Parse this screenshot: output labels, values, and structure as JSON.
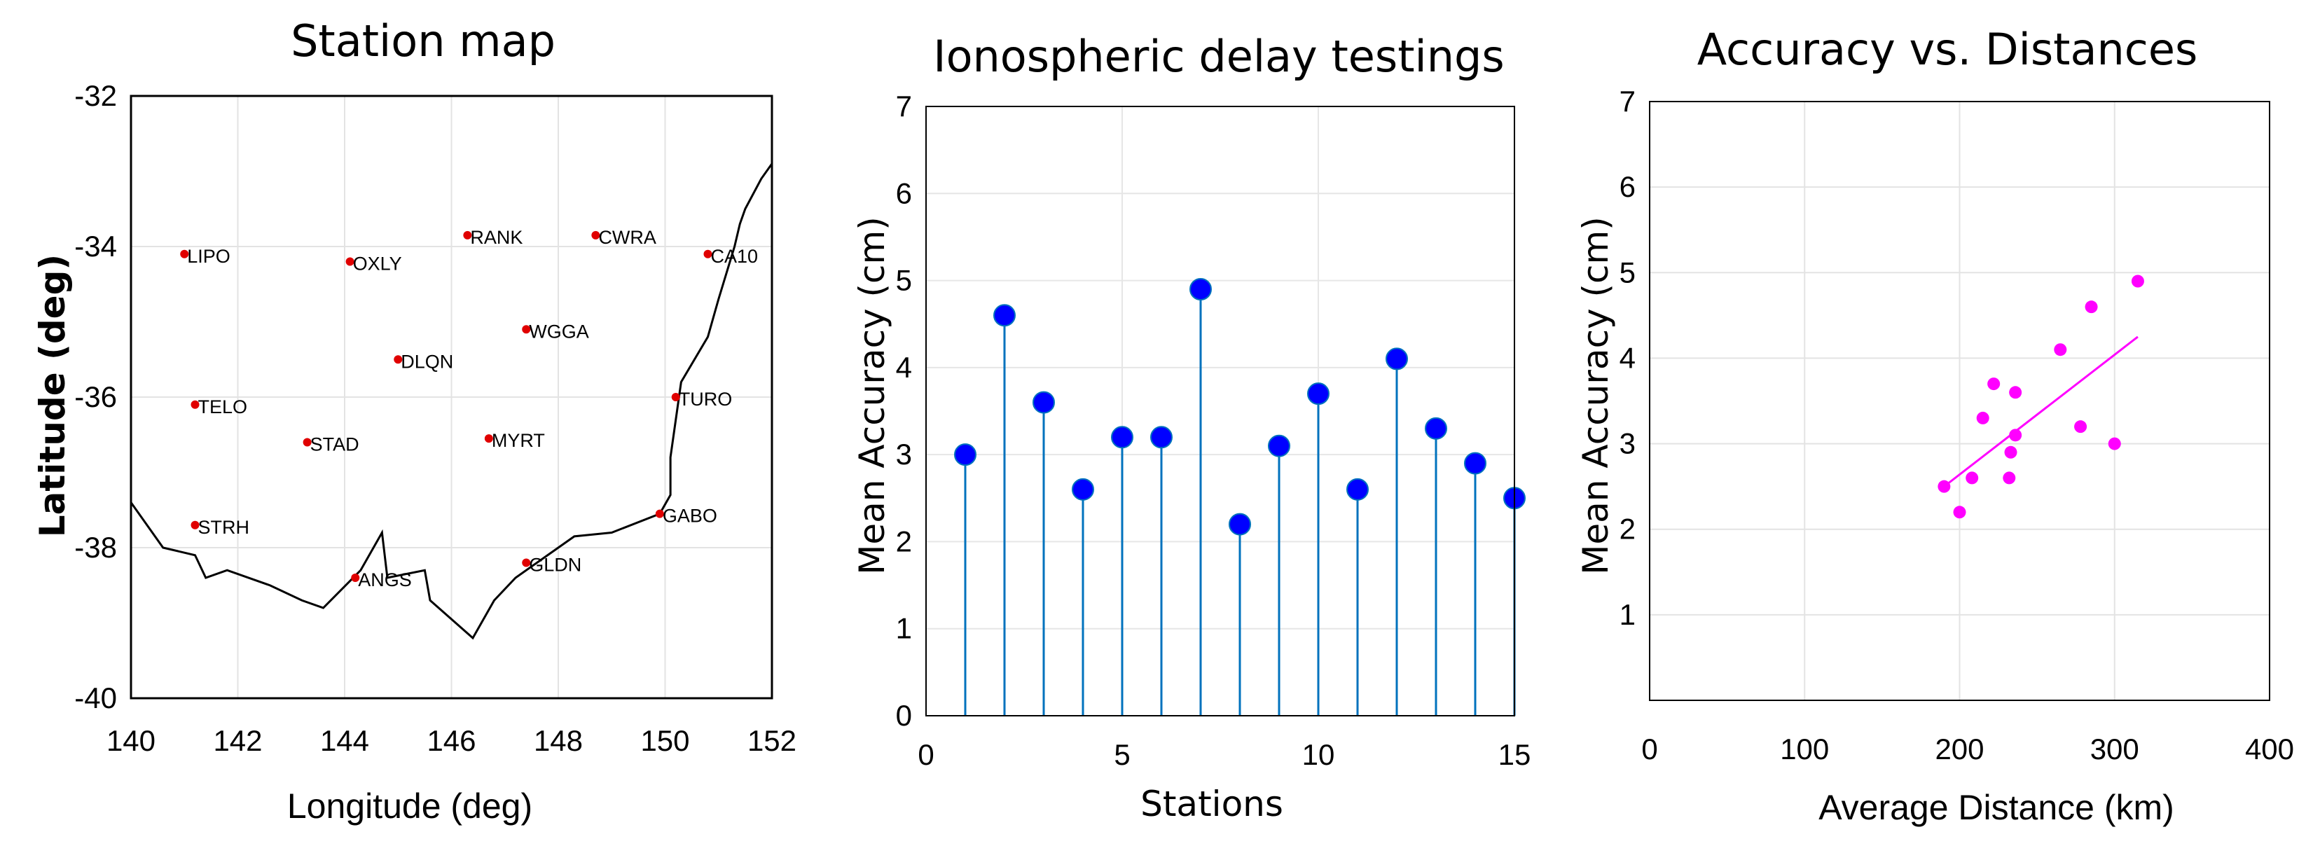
{
  "chart_data": [
    {
      "type": "scatter",
      "title": "Station map",
      "xlabel": "Longitude (deg)",
      "ylabel": "Latitude (deg)",
      "xlim": [
        140,
        152
      ],
      "ylim": [
        -40,
        -32
      ],
      "xticks": [
        "140",
        "142",
        "144",
        "146",
        "148",
        "150",
        "152"
      ],
      "yticks": [
        "-32",
        "-34",
        "-36",
        "-38",
        "-40"
      ],
      "grid": true,
      "marker_color": "#e00000",
      "stations": [
        {
          "name": "LIPO",
          "lon": 141.0,
          "lat": -34.1
        },
        {
          "name": "OXLY",
          "lon": 144.1,
          "lat": -34.2
        },
        {
          "name": "RANK",
          "lon": 146.3,
          "lat": -33.85
        },
        {
          "name": "CWRA",
          "lon": 148.7,
          "lat": -33.85
        },
        {
          "name": "CA10",
          "lon": 150.8,
          "lat": -34.1
        },
        {
          "name": "WGGA",
          "lon": 147.4,
          "lat": -35.1
        },
        {
          "name": "DLQN",
          "lon": 145.0,
          "lat": -35.5
        },
        {
          "name": "TELO",
          "lon": 141.2,
          "lat": -36.1
        },
        {
          "name": "TURO",
          "lon": 150.2,
          "lat": -36.0
        },
        {
          "name": "STAD",
          "lon": 143.3,
          "lat": -36.6
        },
        {
          "name": "MYRT",
          "lon": 146.7,
          "lat": -36.55
        },
        {
          "name": "STRH",
          "lon": 141.2,
          "lat": -37.7
        },
        {
          "name": "GABO",
          "lon": 149.9,
          "lat": -37.55
        },
        {
          "name": "ANGS",
          "lon": 144.2,
          "lat": -38.4
        },
        {
          "name": "GLDN",
          "lon": 147.4,
          "lat": -38.2
        }
      ],
      "coastline": [
        [
          140,
          -37.4
        ],
        [
          140.6,
          -38.0
        ],
        [
          141.2,
          -38.1
        ],
        [
          141.4,
          -38.4
        ],
        [
          141.8,
          -38.3
        ],
        [
          142.6,
          -38.5
        ],
        [
          143.2,
          -38.7
        ],
        [
          143.6,
          -38.8
        ],
        [
          144.3,
          -38.3
        ],
        [
          144.7,
          -37.8
        ],
        [
          144.8,
          -38.4
        ],
        [
          145.5,
          -38.3
        ],
        [
          145.6,
          -38.7
        ],
        [
          146.4,
          -39.2
        ],
        [
          146.8,
          -38.7
        ],
        [
          147.2,
          -38.4
        ],
        [
          147.8,
          -38.1
        ],
        [
          148.3,
          -37.85
        ],
        [
          149.0,
          -37.8
        ],
        [
          149.9,
          -37.55
        ],
        [
          150.1,
          -37.3
        ],
        [
          150.1,
          -36.8
        ],
        [
          150.2,
          -36.3
        ],
        [
          150.3,
          -35.8
        ],
        [
          150.8,
          -35.2
        ],
        [
          151.0,
          -34.7
        ],
        [
          151.3,
          -34.0
        ],
        [
          151.4,
          -33.7
        ],
        [
          151.5,
          -33.5
        ],
        [
          151.8,
          -33.1
        ],
        [
          152.0,
          -32.9
        ]
      ]
    },
    {
      "type": "stem",
      "title": "Ionospheric delay testings",
      "xlabel": "Stations",
      "ylabel": "Mean Accuracy (cm)",
      "xlim": [
        0,
        15
      ],
      "ylim": [
        0,
        7
      ],
      "xticks": [
        "0",
        "5",
        "10",
        "15"
      ],
      "yticks": [
        "0",
        "1",
        "2",
        "3",
        "4",
        "5",
        "6",
        "7"
      ],
      "grid": true,
      "marker_color": "#0000ff",
      "stem_color": "#0072bd",
      "x": [
        1,
        2,
        3,
        4,
        5,
        6,
        7,
        8,
        9,
        10,
        11,
        12,
        13,
        14,
        15
      ],
      "values": [
        3.0,
        4.6,
        3.6,
        2.6,
        3.2,
        3.2,
        4.9,
        2.2,
        3.1,
        3.7,
        2.6,
        4.1,
        3.3,
        2.9,
        2.5
      ]
    },
    {
      "type": "scatter",
      "title": "Accuracy vs. Distances",
      "xlabel": "Average Distance (km)",
      "ylabel": "Mean Accuracy (cm)",
      "xlim": [
        0,
        400
      ],
      "ylim": [
        0,
        7
      ],
      "xticks": [
        "0",
        "100",
        "200",
        "300",
        "400"
      ],
      "yticks": [
        "1",
        "2",
        "3",
        "4",
        "5",
        "6",
        "7"
      ],
      "grid": true,
      "marker_color": "#ff00ff",
      "points": [
        {
          "x": 190,
          "y": 2.5
        },
        {
          "x": 200,
          "y": 2.2
        },
        {
          "x": 208,
          "y": 2.6
        },
        {
          "x": 215,
          "y": 3.3
        },
        {
          "x": 222,
          "y": 3.7
        },
        {
          "x": 232,
          "y": 2.6
        },
        {
          "x": 233,
          "y": 2.9
        },
        {
          "x": 236,
          "y": 3.1
        },
        {
          "x": 236,
          "y": 3.6
        },
        {
          "x": 265,
          "y": 4.1
        },
        {
          "x": 278,
          "y": 3.2
        },
        {
          "x": 285,
          "y": 4.6
        },
        {
          "x": 300,
          "y": 3.0
        },
        {
          "x": 315,
          "y": 4.9
        }
      ],
      "trendline": [
        [
          190,
          2.5
        ],
        [
          315,
          4.25
        ]
      ]
    }
  ]
}
